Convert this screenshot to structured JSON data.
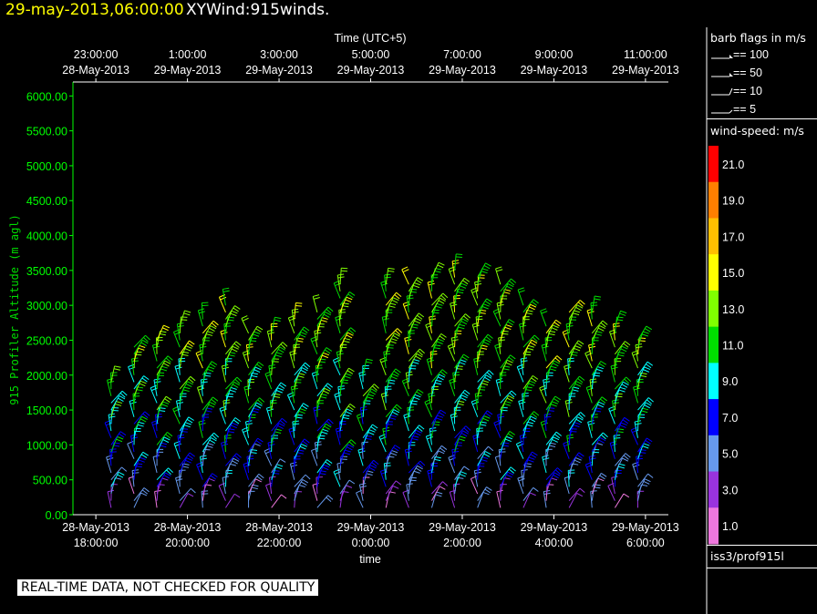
{
  "header": {
    "datetime": "29-may-2013,06:00:00",
    "product": "XYWind:915winds."
  },
  "legend": {
    "barb_title": "barb flags in m/s",
    "barb_flags": [
      {
        "label": "== 100",
        "value": 100
      },
      {
        "label": "== 50",
        "value": 50
      },
      {
        "label": "== 10",
        "value": 10
      },
      {
        "label": "== 5",
        "value": 5
      }
    ],
    "wind_speed_title": "wind-speed: m/s",
    "color_scale": [
      {
        "label": "21.0",
        "color": "#ff0000"
      },
      {
        "label": "19.0",
        "color": "#ff7f00"
      },
      {
        "label": "17.0",
        "color": "#ffbf00"
      },
      {
        "label": "15.0",
        "color": "#ffff00"
      },
      {
        "label": "13.0",
        "color": "#80ff00"
      },
      {
        "label": "11.0",
        "color": "#00dd00"
      },
      {
        "label": "9.0",
        "color": "#00ffff"
      },
      {
        "label": "7.0",
        "color": "#0000ff"
      },
      {
        "label": "5.0",
        "color": "#6699ee"
      },
      {
        "label": "3.0",
        "color": "#9933dd"
      },
      {
        "label": "1.0",
        "color": "#ee77dd"
      }
    ],
    "station": "iss3/prof915l"
  },
  "disclaimer": "REAL-TIME DATA, NOT CHECKED FOR QUALITY",
  "chart_data": {
    "type": "scatter",
    "title": "XYWind:915winds.",
    "xlabel": "time",
    "x2label": "Time (UTC+5)",
    "ylabel": "915 Profiler Altitude (m agl)",
    "xlim": [
      "28-May-2013 17:30:00",
      "29-May-2013 06:30:00"
    ],
    "ylim": [
      0,
      6200
    ],
    "x_ticks": [
      {
        "d": "28-May-2013",
        "t": "18:00:00"
      },
      {
        "d": "28-May-2013",
        "t": "20:00:00"
      },
      {
        "d": "28-May-2013",
        "t": "22:00:00"
      },
      {
        "d": "29-May-2013",
        "t": "0:00:00"
      },
      {
        "d": "29-May-2013",
        "t": "2:00:00"
      },
      {
        "d": "29-May-2013",
        "t": "4:00:00"
      },
      {
        "d": "29-May-2013",
        "t": "6:00:00"
      }
    ],
    "x2_ticks": [
      {
        "t": "23:00:00",
        "d": "28-May-2013"
      },
      {
        "t": "1:00:00",
        "d": "29-May-2013"
      },
      {
        "t": "3:00:00",
        "d": "29-May-2013"
      },
      {
        "t": "5:00:00",
        "d": "29-May-2013"
      },
      {
        "t": "7:00:00",
        "d": "29-May-2013"
      },
      {
        "t": "9:00:00",
        "d": "29-May-2013"
      },
      {
        "t": "11:00:00",
        "d": "29-May-2013"
      }
    ],
    "y_ticks": [
      "0.00",
      "500.00",
      "1000.00",
      "1500.00",
      "2000.00",
      "2500.00",
      "3000.00",
      "3500.00",
      "4000.00",
      "4500.00",
      "5000.00",
      "5500.00",
      "6000.00"
    ],
    "profile_times": [
      "28-May-2013 18:20:00",
      "28-May-2013 18:50:00",
      "28-May-2013 19:20:00",
      "28-May-2013 19:50:00",
      "28-May-2013 20:20:00",
      "28-May-2013 20:50:00",
      "28-May-2013 21:20:00",
      "28-May-2013 21:50:00",
      "28-May-2013 22:20:00",
      "28-May-2013 22:50:00",
      "28-May-2013 23:20:00",
      "28-May-2013 23:50:00",
      "29-May-2013 00:20:00",
      "29-May-2013 00:50:00",
      "29-May-2013 01:20:00",
      "29-May-2013 01:50:00",
      "29-May-2013 02:20:00",
      "29-May-2013 02:50:00",
      "29-May-2013 03:20:00",
      "29-May-2013 03:50:00",
      "29-May-2013 04:20:00",
      "29-May-2013 04:50:00",
      "29-May-2013 05:20:00",
      "29-May-2013 05:50:00"
    ],
    "profile_tops_m": [
      1900,
      2400,
      2500,
      2750,
      2850,
      3050,
      2600,
      2600,
      2800,
      2900,
      3300,
      2000,
      3300,
      3350,
      3400,
      3500,
      3450,
      3300,
      3000,
      2700,
      2900,
      2900,
      2700,
      2500
    ],
    "speed_bands": [
      {
        "alt_max_m": 300,
        "speed_ms": 3
      },
      {
        "alt_max_m": 800,
        "speed_ms": 6
      },
      {
        "alt_max_m": 1300,
        "speed_ms": 8
      },
      {
        "alt_max_m": 2000,
        "speed_ms": 10
      },
      {
        "alt_max_m": 3600,
        "speed_ms": 12
      }
    ]
  }
}
